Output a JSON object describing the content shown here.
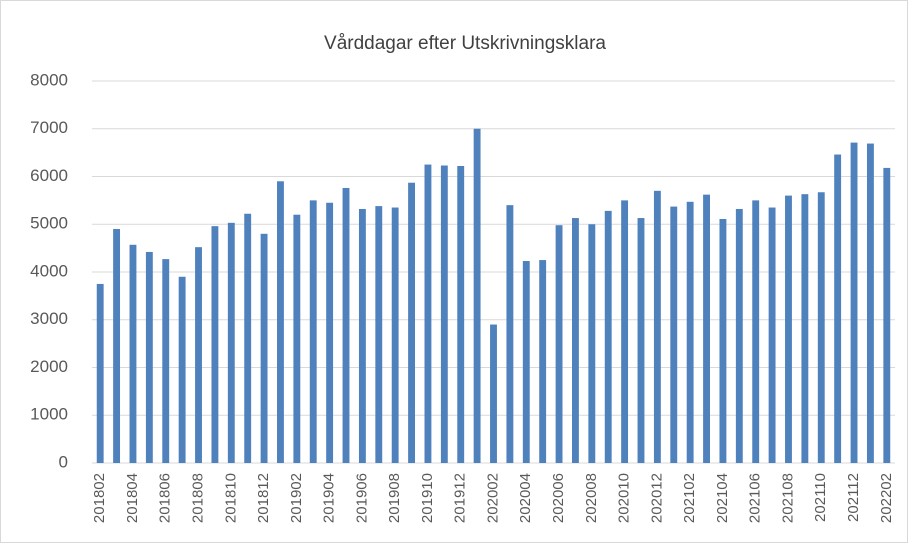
{
  "chart_data": {
    "type": "bar",
    "title": "Vårddagar efter Utskrivningsklara",
    "categories": [
      "201802",
      null,
      "201804",
      null,
      "201806",
      null,
      "201808",
      null,
      "201810",
      null,
      "201812",
      null,
      "201902",
      null,
      "201904",
      null,
      "201906",
      null,
      "201908",
      null,
      "201910",
      null,
      "201912",
      null,
      "202002",
      null,
      "202004",
      null,
      "202006",
      null,
      "202008",
      null,
      "202010",
      null,
      "202012",
      null,
      "202102",
      null,
      "202104",
      null,
      "202106",
      null,
      "202108",
      null,
      "202110",
      null,
      "202112",
      null,
      "202202"
    ],
    "values": [
      3750,
      4900,
      4570,
      4420,
      4270,
      3900,
      4520,
      4960,
      5030,
      5220,
      4800,
      5900,
      5200,
      5500,
      5450,
      5760,
      5320,
      5380,
      5350,
      5870,
      6250,
      6230,
      6220,
      7000,
      2900,
      5400,
      4230,
      4250,
      4980,
      5130,
      5000,
      5280,
      5500,
      5130,
      5700,
      5370,
      5470,
      5620,
      5110,
      5320,
      5500,
      5350,
      5600,
      5630,
      5670,
      6460,
      6710,
      6690,
      6180
    ],
    "color": "#4f81bd",
    "ylim": [
      0,
      8000
    ],
    "yticks": [
      0,
      1000,
      2000,
      3000,
      4000,
      5000,
      6000,
      7000,
      8000
    ],
    "grid": true
  }
}
